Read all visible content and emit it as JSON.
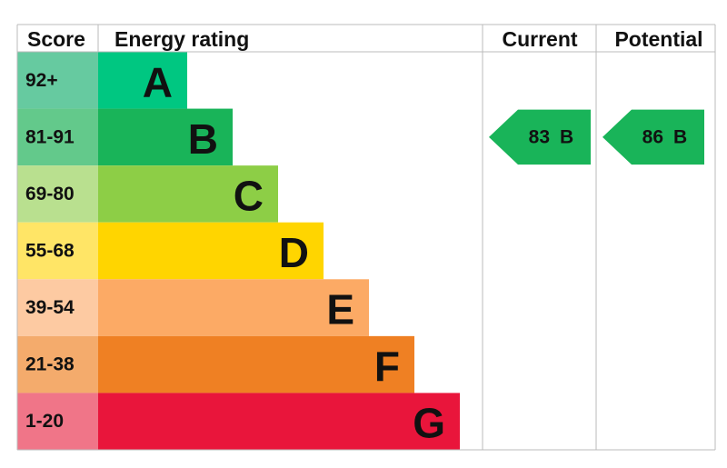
{
  "header": {
    "score": "Score",
    "rating": "Energy rating",
    "current": "Current",
    "potential": "Potential"
  },
  "bands": [
    {
      "score": "92+",
      "letter": "A",
      "color": "#00c781",
      "score_color": "#66caa0"
    },
    {
      "score": "81-91",
      "letter": "B",
      "color": "#19b459",
      "score_color": "#63c98b"
    },
    {
      "score": "69-80",
      "letter": "C",
      "color": "#8dce46",
      "score_color": "#b9e08f"
    },
    {
      "score": "55-68",
      "letter": "D",
      "color": "#ffd500",
      "score_color": "#ffe566"
    },
    {
      "score": "39-54",
      "letter": "E",
      "color": "#fcaa65",
      "score_color": "#fdcaa2"
    },
    {
      "score": "21-38",
      "letter": "F",
      "color": "#ef8023",
      "score_color": "#f4ab6c"
    },
    {
      "score": "1-20",
      "letter": "G",
      "color": "#e9153b",
      "score_color": "#f07588"
    }
  ],
  "current": {
    "score": 83,
    "rating": "B"
  },
  "potential": {
    "score": 86,
    "rating": "B"
  }
}
